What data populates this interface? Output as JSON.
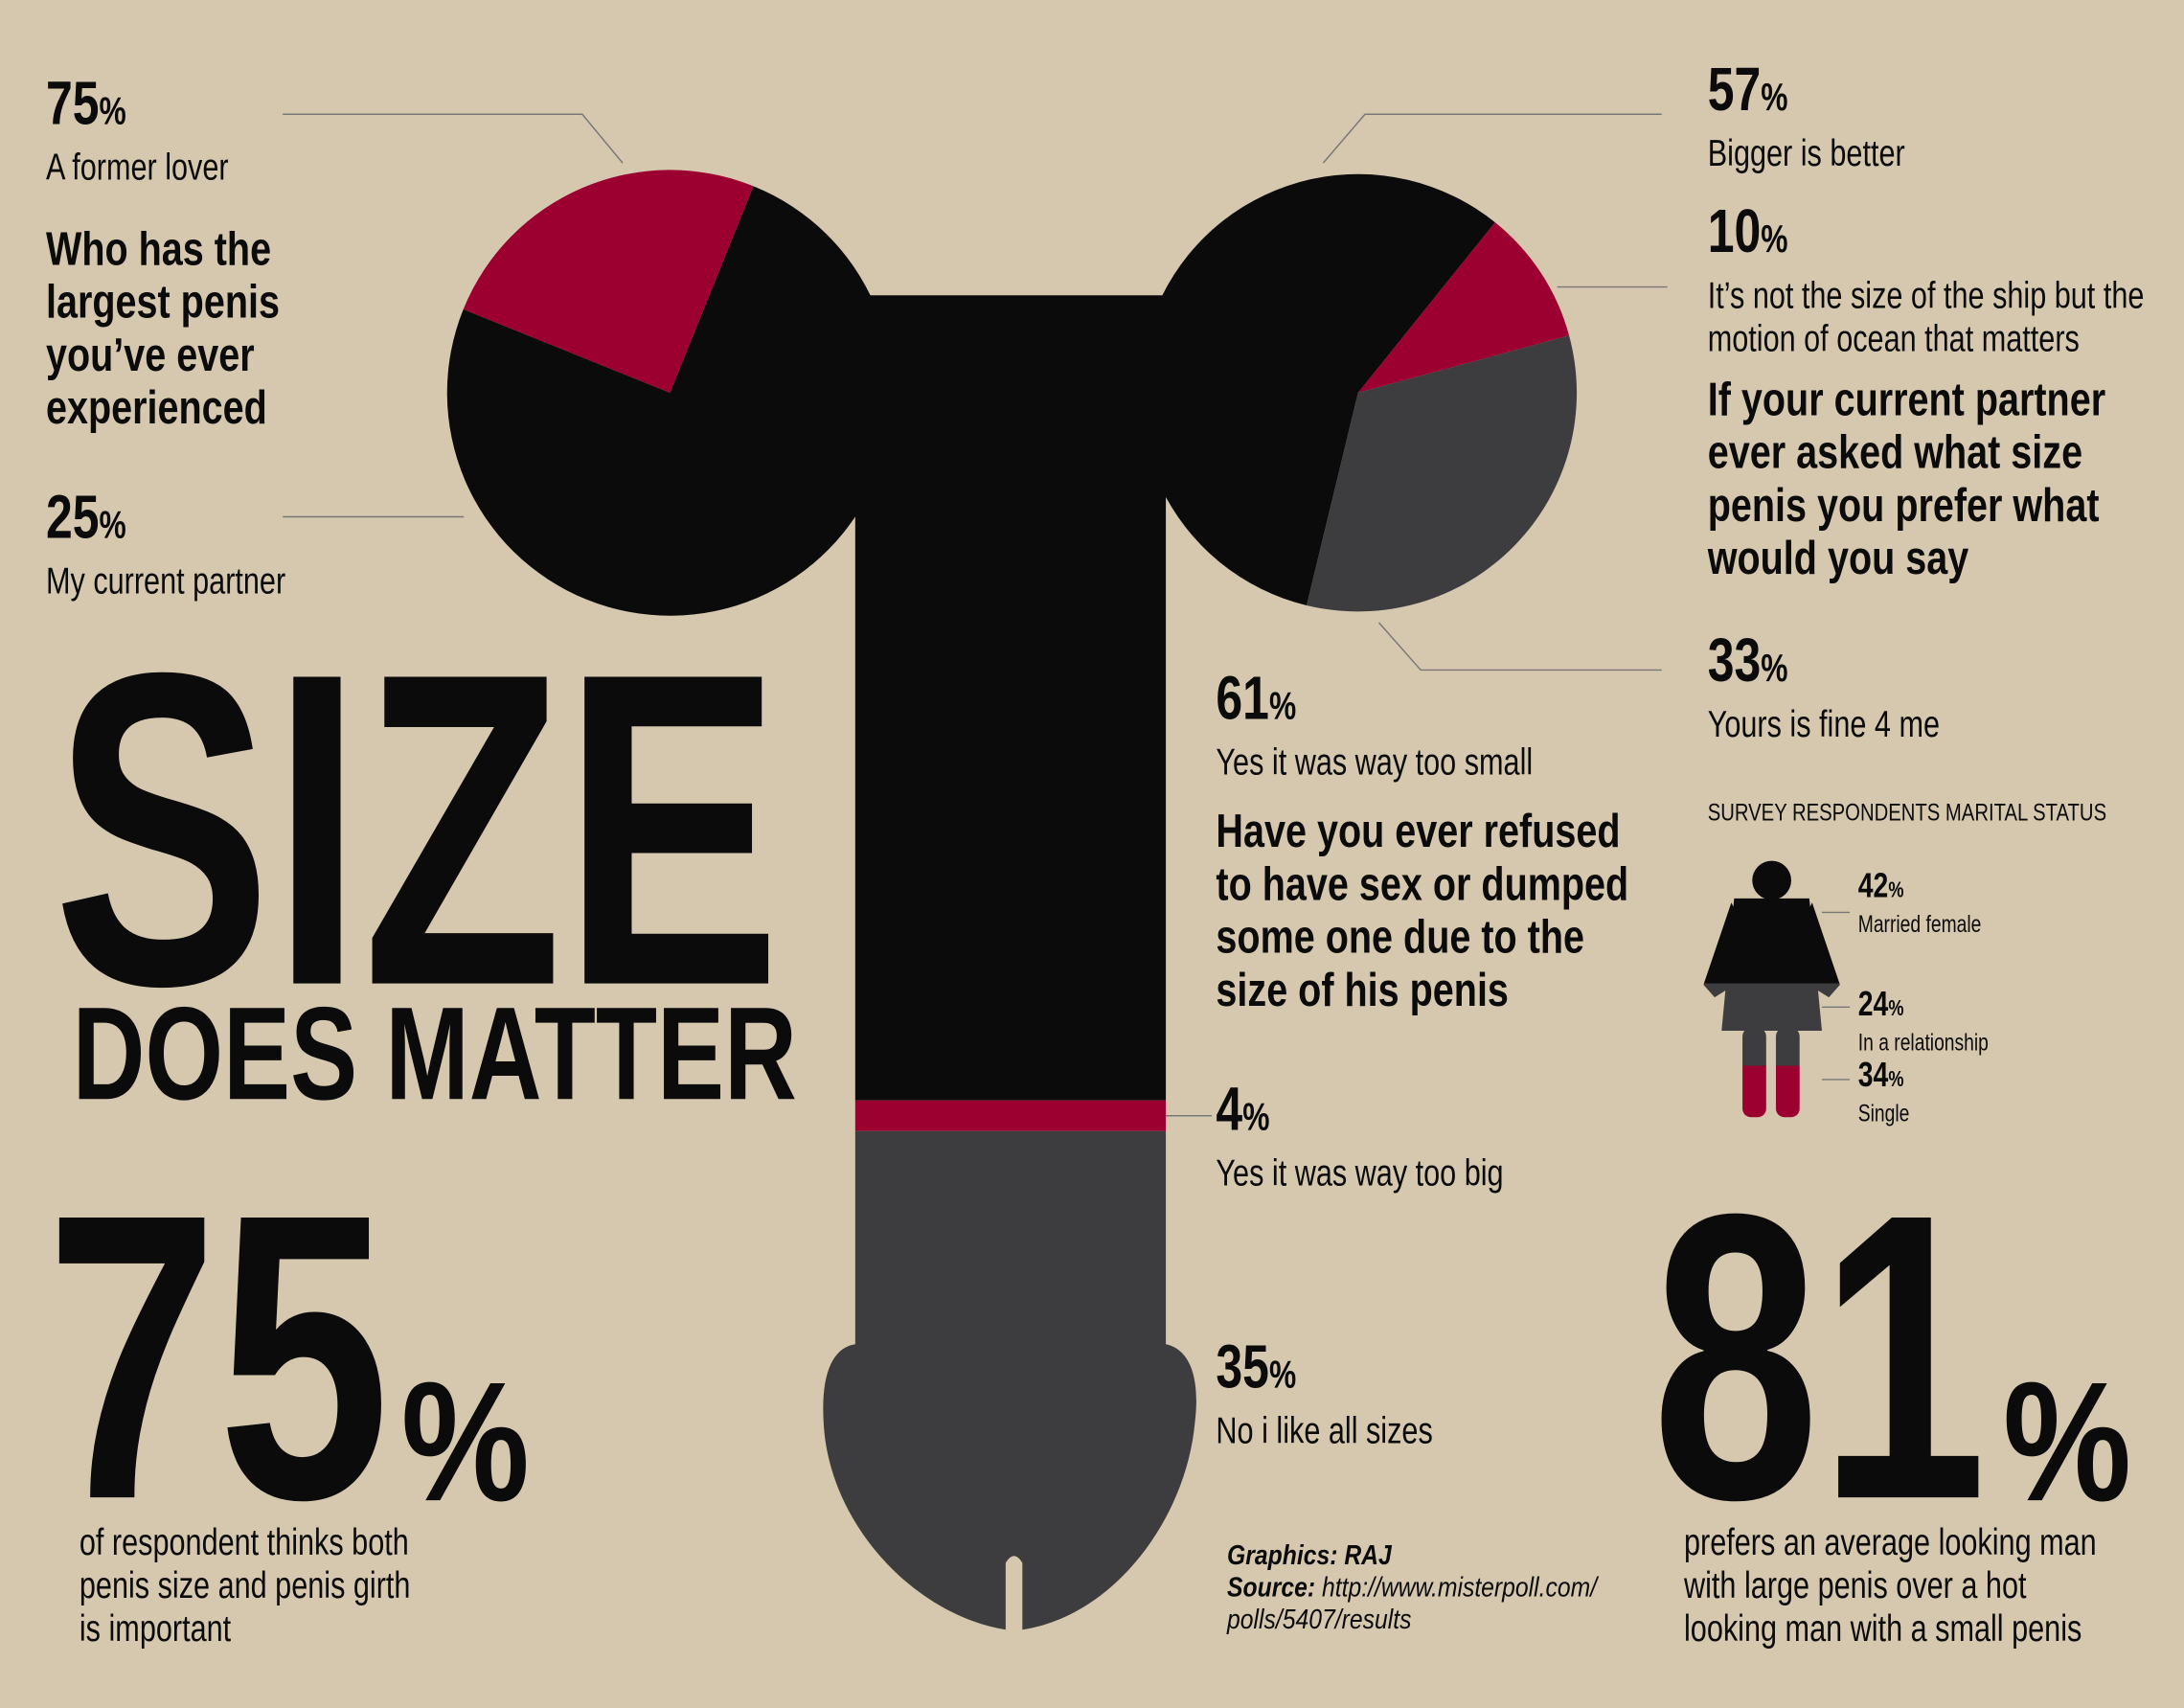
{
  "colors": {
    "background": "#d6c8ae",
    "black": "#0b0b0b",
    "red": "#9b0030",
    "gray": "#3d3c3e",
    "leader": "#777777"
  },
  "headline": {
    "line1": "SIZE",
    "line2": "DOES MATTER"
  },
  "q1": {
    "lines": [
      "Who has the",
      "largest penis",
      "you’ve ever",
      "experienced"
    ],
    "stats": [
      {
        "value": "75",
        "pct": "%",
        "label": "A former lover"
      },
      {
        "value": "25",
        "pct": "%",
        "label": "My current partner"
      }
    ]
  },
  "q2": {
    "lines": [
      "If your current partner",
      "ever asked what size",
      "penis you prefer what",
      "would you say"
    ],
    "stats": [
      {
        "value": "57",
        "pct": "%",
        "label": "Bigger is better"
      },
      {
        "value": "10",
        "pct": "%",
        "label": [
          "It’s not the size of the ship but the",
          "motion of ocean that matters"
        ]
      },
      {
        "value": "33",
        "pct": "%",
        "label": "Yours is fine 4 me"
      }
    ]
  },
  "q3": {
    "lines": [
      "Have you ever refused",
      "to have sex or dumped",
      "some one due to the",
      "size of his penis"
    ],
    "stats": [
      {
        "value": "61",
        "pct": "%",
        "label": "Yes it was way too small"
      },
      {
        "value": "4",
        "pct": "%",
        "label": "Yes it was way too big"
      },
      {
        "value": "35",
        "pct": "%",
        "label": "No i like all sizes"
      }
    ]
  },
  "marital": {
    "title": "SURVEY RESPONDENTS MARITAL STATUS",
    "stats": [
      {
        "value": "42",
        "pct": "%",
        "label": "Married female"
      },
      {
        "value": "24",
        "pct": "%",
        "label": "In a relationship"
      },
      {
        "value": "34",
        "pct": "%",
        "label": "Single"
      }
    ]
  },
  "big_left": {
    "value": "75",
    "pct": "%",
    "lines": [
      "of respondent thinks both",
      "penis size and penis girth",
      "is important"
    ]
  },
  "big_right": {
    "value": "81",
    "pct": "%",
    "lines": [
      "prefers an average looking man",
      "with large penis over a hot",
      "looking man with a small penis"
    ]
  },
  "credits": {
    "graphics_label": "Graphics: RAJ",
    "source_label": "Source:",
    "source_line1": "http://www.misterpoll.com/",
    "source_line2": "polls/5407/results"
  },
  "chart_data": [
    {
      "type": "pie",
      "question": "Who has the largest penis you've ever experienced",
      "categories": [
        "A former lover",
        "My current partner"
      ],
      "values": [
        75,
        25
      ],
      "colors": [
        "#0b0b0b",
        "#9b0030"
      ]
    },
    {
      "type": "pie",
      "question": "If your current partner ever asked what size penis you prefer what would you say",
      "categories": [
        "Bigger is better",
        "It's not the size of the ship but the motion of ocean that matters",
        "Yours is fine 4 me"
      ],
      "values": [
        57,
        10,
        33
      ],
      "colors": [
        "#0b0b0b",
        "#9b0030",
        "#3d3c3e"
      ]
    },
    {
      "type": "bar",
      "orientation": "stacked-vertical",
      "question": "Have you ever refused to have sex or dumped some one due to the size of his penis",
      "categories": [
        "Yes it was way too small",
        "Yes it was way too big",
        "No i like all sizes"
      ],
      "values": [
        61,
        4,
        35
      ],
      "colors": [
        "#0b0b0b",
        "#9b0030",
        "#3d3c3e"
      ]
    },
    {
      "type": "bar",
      "orientation": "stacked-vertical",
      "title": "SURVEY RESPONDENTS MARITAL STATUS",
      "categories": [
        "Married female",
        "In a relationship",
        "Single"
      ],
      "values": [
        42,
        24,
        34
      ],
      "colors": [
        "#0b0b0b",
        "#3d3c3e",
        "#9b0030"
      ]
    }
  ]
}
